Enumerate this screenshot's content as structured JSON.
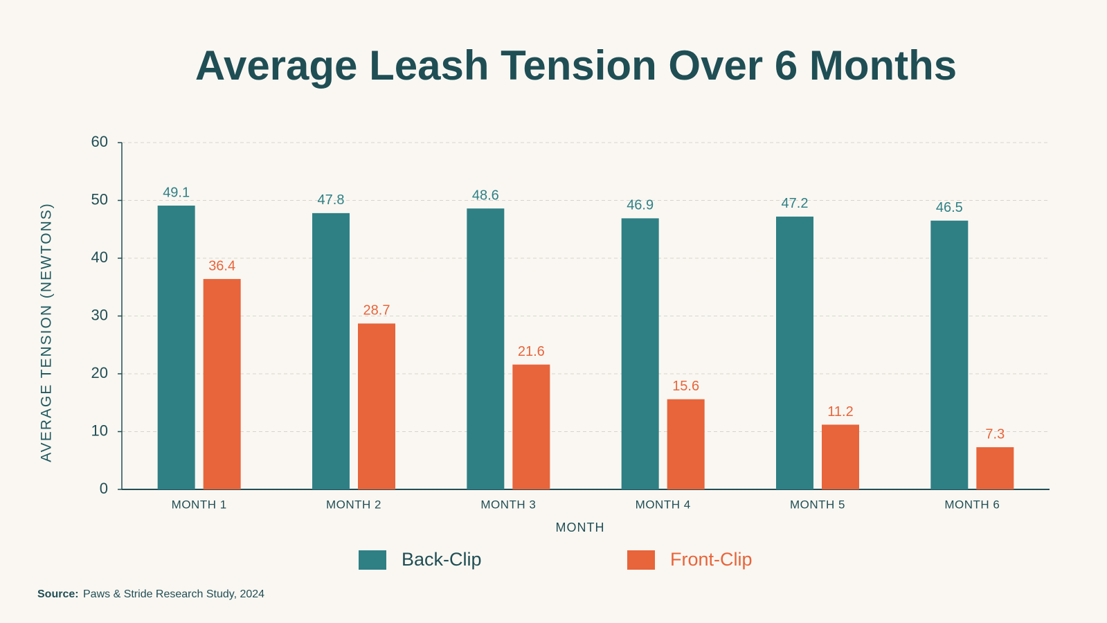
{
  "chart_data": {
    "type": "bar",
    "title": "Average Leash Tension Over 6 Months",
    "x_label": "MONTH",
    "y_label": "AVERAGE TENSION (NEWTONS)",
    "categories": [
      "MONTH 1",
      "MONTH 2",
      "MONTH 3",
      "MONTH 4",
      "MONTH 5",
      "MONTH 6"
    ],
    "series": [
      {
        "name": "Back-Clip",
        "color": "#2e8085",
        "values": [
          49.1,
          47.8,
          48.6,
          46.9,
          47.2,
          46.5
        ]
      },
      {
        "name": "Front-Clip",
        "color": "#e8643a",
        "values": [
          36.4,
          28.7,
          21.6,
          15.6,
          11.2,
          7.3
        ]
      }
    ],
    "ylim": [
      0,
      60
    ],
    "yticks": [
      0,
      10,
      20,
      30,
      40,
      50,
      60
    ],
    "grid": true,
    "legend": "bottom",
    "source": {
      "label": "Source:",
      "text": "Paws & Stride Research Study, 2024"
    }
  }
}
